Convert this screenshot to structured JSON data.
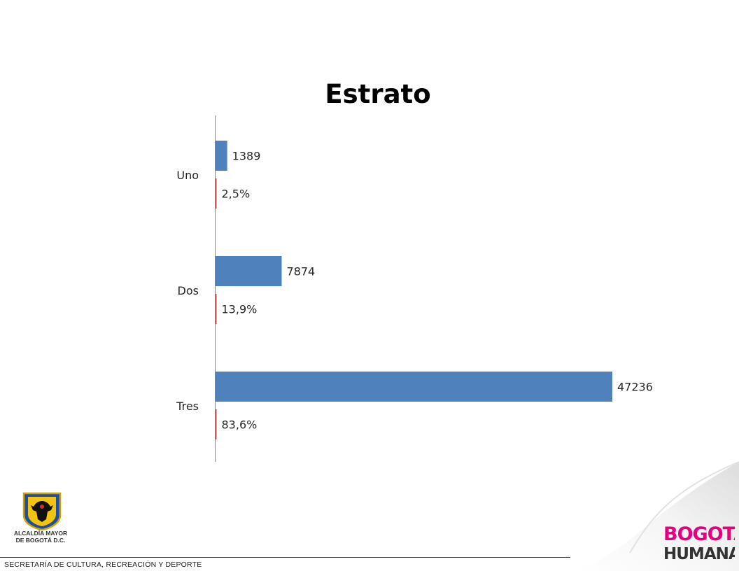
{
  "chart_data": {
    "type": "bar",
    "orientation": "horizontal",
    "title": "Estrato",
    "categories": [
      "Uno",
      "Dos",
      "Tres"
    ],
    "series": [
      {
        "values": [
          1389,
          7874,
          47236
        ],
        "labels": [
          "1389",
          "7874",
          "47236"
        ],
        "color": "#4F81BD"
      },
      {
        "values": [
          2.5,
          13.9,
          83.6
        ],
        "labels": [
          "2,5%",
          "13,9%",
          "83,6%"
        ],
        "color": "#C0504D"
      }
    ],
    "xlim": [
      0,
      47236
    ],
    "grid": false,
    "legend": "none"
  },
  "footer": {
    "org_line1": "ALCALDÍA MAYOR",
    "org_line2": "DE BOGOTÁ D.C.",
    "secretariat": "SECRETARÍA DE CULTURA, RECREACIÓN Y DEPORTE"
  },
  "brand": {
    "line1": "BOGOTÁ",
    "line2": "HUMANA"
  }
}
